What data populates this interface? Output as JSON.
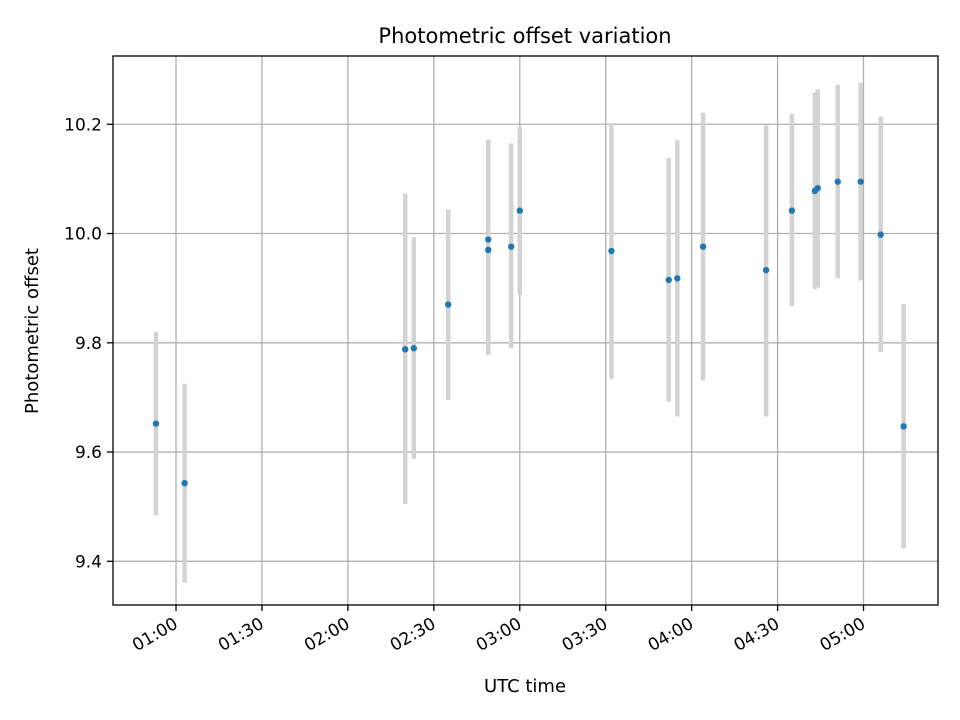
{
  "chart_data": {
    "type": "scatter",
    "title": "Photometric offset variation",
    "xlabel": "UTC time",
    "ylabel": "Photometric offset",
    "xlim": [
      "00:38",
      "05:26"
    ],
    "ylim": [
      9.32,
      10.325
    ],
    "x_ticks": [
      "01:00",
      "01:30",
      "02:00",
      "02:30",
      "03:00",
      "03:30",
      "04:00",
      "04:30",
      "05:00"
    ],
    "y_ticks": [
      9.4,
      9.6,
      9.8,
      10.0,
      10.2
    ],
    "y_tick_labels": [
      "9.4",
      "9.6",
      "9.8",
      "10.0",
      "10.2"
    ],
    "grid": true,
    "colors": {
      "point": "#1f77b4",
      "errorbar": "#d3d3d3",
      "grid": "#b0b0b0"
    },
    "points": [
      {
        "x": "00:53",
        "y": 9.652,
        "ylo": 9.484,
        "yhi": 9.82
      },
      {
        "x": "01:03",
        "y": 9.543,
        "ylo": 9.361,
        "yhi": 9.725
      },
      {
        "x": "02:20",
        "y": 9.788,
        "ylo": 9.505,
        "yhi": 10.073
      },
      {
        "x": "02:23",
        "y": 9.79,
        "ylo": 9.588,
        "yhi": 9.993
      },
      {
        "x": "02:35",
        "y": 9.87,
        "ylo": 9.695,
        "yhi": 10.044
      },
      {
        "x": "02:49",
        "y": 9.989,
        "ylo": 9.778,
        "yhi": 10.172
      },
      {
        "x": "02:49",
        "y": 9.97,
        "ylo": 9.778,
        "yhi": 10.16
      },
      {
        "x": "02:57",
        "y": 9.976,
        "ylo": 9.79,
        "yhi": 10.165
      },
      {
        "x": "03:00",
        "y": 10.042,
        "ylo": 9.888,
        "yhi": 10.196
      },
      {
        "x": "03:32",
        "y": 9.968,
        "ylo": 9.734,
        "yhi": 10.202
      },
      {
        "x": "03:52",
        "y": 9.915,
        "ylo": 9.692,
        "yhi": 10.138
      },
      {
        "x": "03:55",
        "y": 9.918,
        "ylo": 9.665,
        "yhi": 10.171
      },
      {
        "x": "04:04",
        "y": 9.976,
        "ylo": 9.731,
        "yhi": 10.221
      },
      {
        "x": "04:26",
        "y": 9.933,
        "ylo": 9.665,
        "yhi": 10.198
      },
      {
        "x": "04:35",
        "y": 10.042,
        "ylo": 9.867,
        "yhi": 10.219
      },
      {
        "x": "04:43",
        "y": 10.078,
        "ylo": 9.898,
        "yhi": 10.258
      },
      {
        "x": "04:44",
        "y": 10.083,
        "ylo": 9.901,
        "yhi": 10.264
      },
      {
        "x": "04:51",
        "y": 10.095,
        "ylo": 9.918,
        "yhi": 10.272
      },
      {
        "x": "04:59",
        "y": 10.095,
        "ylo": 9.914,
        "yhi": 10.276
      },
      {
        "x": "05:06",
        "y": 9.998,
        "ylo": 9.783,
        "yhi": 10.214
      },
      {
        "x": "05:14",
        "y": 9.647,
        "ylo": 9.424,
        "yhi": 9.871
      }
    ]
  }
}
